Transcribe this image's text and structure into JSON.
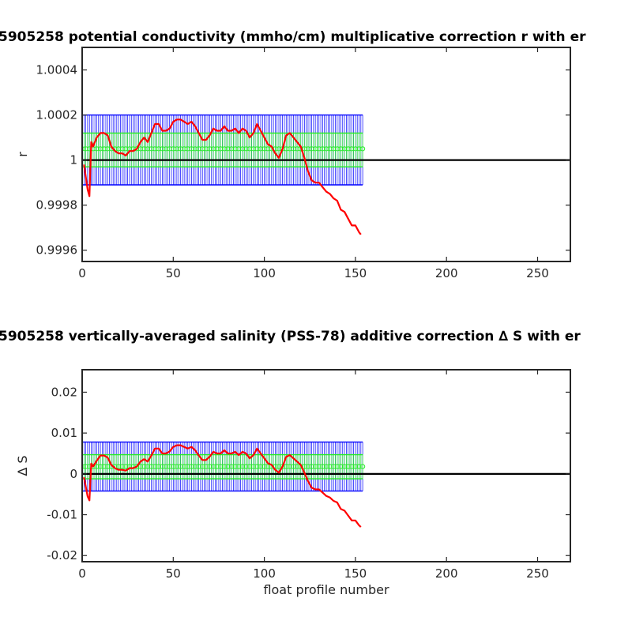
{
  "chart_data": [
    {
      "type": "line",
      "title": "5905258 potential conductivity (mmho/cm) multiplicative correction r with er",
      "xlabel": "",
      "ylabel": "r",
      "xlim": [
        0,
        268
      ],
      "ylim": [
        0.99955,
        1.0005
      ],
      "xticks": [
        0,
        50,
        100,
        150,
        200,
        250
      ],
      "yticks": [
        0.9996,
        0.9998,
        1,
        1.0002,
        1.0004
      ],
      "ytick_labels": [
        "0.9996",
        "0.9998",
        "1",
        "1.0002",
        "1.0004"
      ],
      "grid": false,
      "reference_line": 1,
      "series": [
        {
          "color": "#ff0000",
          "x": [
            1,
            3,
            4,
            5,
            6,
            8,
            10,
            12,
            14,
            16,
            18,
            20,
            22,
            24,
            26,
            28,
            30,
            32,
            34,
            36,
            38,
            40,
            42,
            44,
            46,
            48,
            50,
            52,
            54,
            56,
            58,
            60,
            62,
            64,
            66,
            68,
            70,
            72,
            74,
            76,
            78,
            80,
            82,
            84,
            86,
            88,
            90,
            92,
            94,
            96,
            98,
            100,
            102,
            104,
            106,
            108,
            110,
            112,
            114,
            116,
            118,
            120,
            122,
            124,
            126,
            128,
            130,
            132,
            134,
            136,
            138,
            140,
            142,
            144,
            146,
            148,
            150,
            152,
            153
          ],
          "y": [
            0.99998,
            0.99987,
            0.99984,
            1.00008,
            1.00006,
            1.0001,
            1.00012,
            1.00012,
            1.00011,
            1.00006,
            1.00004,
            1.00003,
            1.00003,
            1.00002,
            1.00004,
            1.00004,
            1.00005,
            1.00008,
            1.0001,
            1.00008,
            1.00012,
            1.00016,
            1.00016,
            1.00013,
            1.00013,
            1.00014,
            1.00017,
            1.00018,
            1.00018,
            1.00017,
            1.00016,
            1.00017,
            1.00015,
            1.00012,
            1.00009,
            1.00009,
            1.00011,
            1.00014,
            1.00013,
            1.00013,
            1.00015,
            1.00013,
            1.00013,
            1.00014,
            1.00012,
            1.00014,
            1.00013,
            1.0001,
            1.00012,
            1.00016,
            1.00013,
            1.0001,
            1.00007,
            1.00006,
            1.00003,
            1.00001,
            1.00005,
            1.00011,
            1.00012,
            1.0001,
            1.00008,
            1.00006,
            1.00001,
            0.99995,
            0.99991,
            0.9999,
            0.9999,
            0.99988,
            0.99986,
            0.99985,
            0.99983,
            0.99982,
            0.99978,
            0.99977,
            0.99974,
            0.99971,
            0.99971,
            0.99968,
            0.99967
          ]
        }
      ],
      "error_bands": [
        {
          "color": "#0000ff",
          "x_range": [
            0,
            154
          ],
          "y_range": [
            0.99989,
            1.0002
          ]
        },
        {
          "color": "#22ee22",
          "x_range": [
            0,
            154
          ],
          "y_range": [
            0.99997,
            1.00012
          ],
          "center": 1.00005
        }
      ]
    },
    {
      "type": "line",
      "title": "5905258 vertically-averaged salinity (PSS-78) additive correction ∆ S with er",
      "xlabel": "float profile number",
      "ylabel": "∆ S",
      "xlim": [
        0,
        268
      ],
      "ylim": [
        -0.0215,
        0.0255
      ],
      "xticks": [
        0,
        50,
        100,
        150,
        200,
        250
      ],
      "yticks": [
        -0.02,
        -0.01,
        0,
        0.01,
        0.02
      ],
      "ytick_labels": [
        "-0.02",
        "-0.01",
        "0",
        "0.01",
        "0.02"
      ],
      "grid": false,
      "reference_line": 0,
      "series": [
        {
          "color": "#ff0000",
          "x": [
            1,
            3,
            4,
            5,
            6,
            8,
            10,
            12,
            14,
            16,
            18,
            20,
            22,
            24,
            26,
            28,
            30,
            32,
            34,
            36,
            38,
            40,
            42,
            44,
            46,
            48,
            50,
            52,
            54,
            56,
            58,
            60,
            62,
            64,
            66,
            68,
            70,
            72,
            74,
            76,
            78,
            80,
            82,
            84,
            86,
            88,
            90,
            92,
            94,
            96,
            98,
            100,
            102,
            104,
            106,
            108,
            110,
            112,
            114,
            116,
            118,
            120,
            122,
            124,
            126,
            128,
            130,
            132,
            134,
            136,
            138,
            140,
            142,
            144,
            146,
            148,
            150,
            152,
            153
          ],
          "y": [
            -0.0008,
            -0.0055,
            -0.0065,
            0.0025,
            0.0018,
            0.0032,
            0.0045,
            0.0045,
            0.004,
            0.0022,
            0.0014,
            0.001,
            0.001,
            0.0008,
            0.0014,
            0.0014,
            0.0018,
            0.003,
            0.0036,
            0.003,
            0.0045,
            0.0062,
            0.0062,
            0.005,
            0.005,
            0.0055,
            0.0066,
            0.007,
            0.007,
            0.0066,
            0.0062,
            0.0066,
            0.0058,
            0.0045,
            0.0034,
            0.0034,
            0.0042,
            0.0054,
            0.005,
            0.005,
            0.0058,
            0.005,
            0.005,
            0.0054,
            0.0046,
            0.0054,
            0.005,
            0.0038,
            0.0046,
            0.0062,
            0.005,
            0.0038,
            0.0026,
            0.0022,
            0.001,
            0.0003,
            0.0018,
            0.0042,
            0.0046,
            0.0038,
            0.003,
            0.0022,
            0.0003,
            -0.0018,
            -0.0034,
            -0.0038,
            -0.0038,
            -0.0046,
            -0.0054,
            -0.0058,
            -0.0066,
            -0.007,
            -0.0086,
            -0.009,
            -0.0102,
            -0.0114,
            -0.0114,
            -0.0126,
            -0.013
          ]
        }
      ],
      "error_bands": [
        {
          "color": "#0000ff",
          "x_range": [
            0,
            154
          ],
          "y_range": [
            -0.0042,
            0.0078
          ]
        },
        {
          "color": "#22ee22",
          "x_range": [
            0,
            154
          ],
          "y_range": [
            -0.0012,
            0.0047
          ],
          "center": 0.0018
        }
      ]
    }
  ]
}
